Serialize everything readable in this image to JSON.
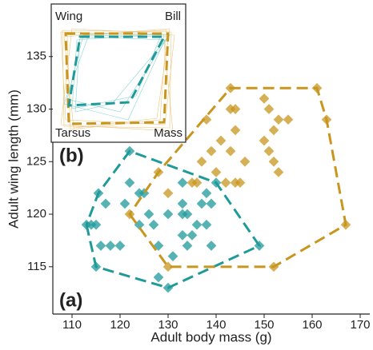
{
  "chart_data": {
    "type": "scatter",
    "x_label": "Adult body mass (g)",
    "y_label": "Adult wing length (mm)",
    "panel_a": "(a)",
    "panel_b": "(b)",
    "inset_labels": [
      "Wing",
      "Bill",
      "Tarsus",
      "Mass"
    ],
    "xlim": [
      106,
      172
    ],
    "ylim": [
      110.5,
      140
    ],
    "xticks": [
      110,
      120,
      130,
      140,
      150,
      160,
      170
    ],
    "yticks": [
      115,
      120,
      125,
      130,
      135
    ],
    "series": [
      {
        "color": "#1f9a99",
        "x": [
          122,
          115.5,
          117,
          114,
          115,
          116,
          115,
          118,
          120,
          121,
          122,
          124,
          125,
          126,
          124,
          127,
          128,
          128,
          130,
          131,
          130,
          133,
          133,
          133,
          134,
          134,
          135,
          133,
          136,
          137,
          138,
          139,
          140,
          138,
          139,
          149,
          113
        ],
        "values": [
          126,
          122,
          121,
          119,
          119,
          117,
          115,
          117,
          117,
          121,
          123,
          122,
          122,
          120,
          119,
          119,
          117,
          114,
          113,
          116,
          120,
          123,
          121,
          120,
          120,
          117,
          118,
          118,
          119,
          121,
          122,
          121,
          123,
          119,
          117,
          117,
          119
        ]
      },
      {
        "color": "#c8961e",
        "x": [
          143,
          161,
          163,
          167,
          152,
          130,
          122,
          128,
          130,
          135,
          136,
          137,
          138,
          139,
          140,
          141,
          142,
          143,
          144,
          144,
          143,
          144,
          145,
          146,
          150,
          151,
          152,
          153,
          155,
          150,
          151,
          153,
          152
        ],
        "values": [
          132,
          132,
          129,
          119,
          115,
          115,
          120,
          124,
          122,
          123,
          123,
          125,
          129,
          126,
          124,
          127,
          123,
          130,
          130,
          128,
          126,
          123,
          123,
          125,
          131,
          130,
          128,
          129,
          129,
          127,
          126,
          124,
          125
        ]
      }
    ]
  }
}
